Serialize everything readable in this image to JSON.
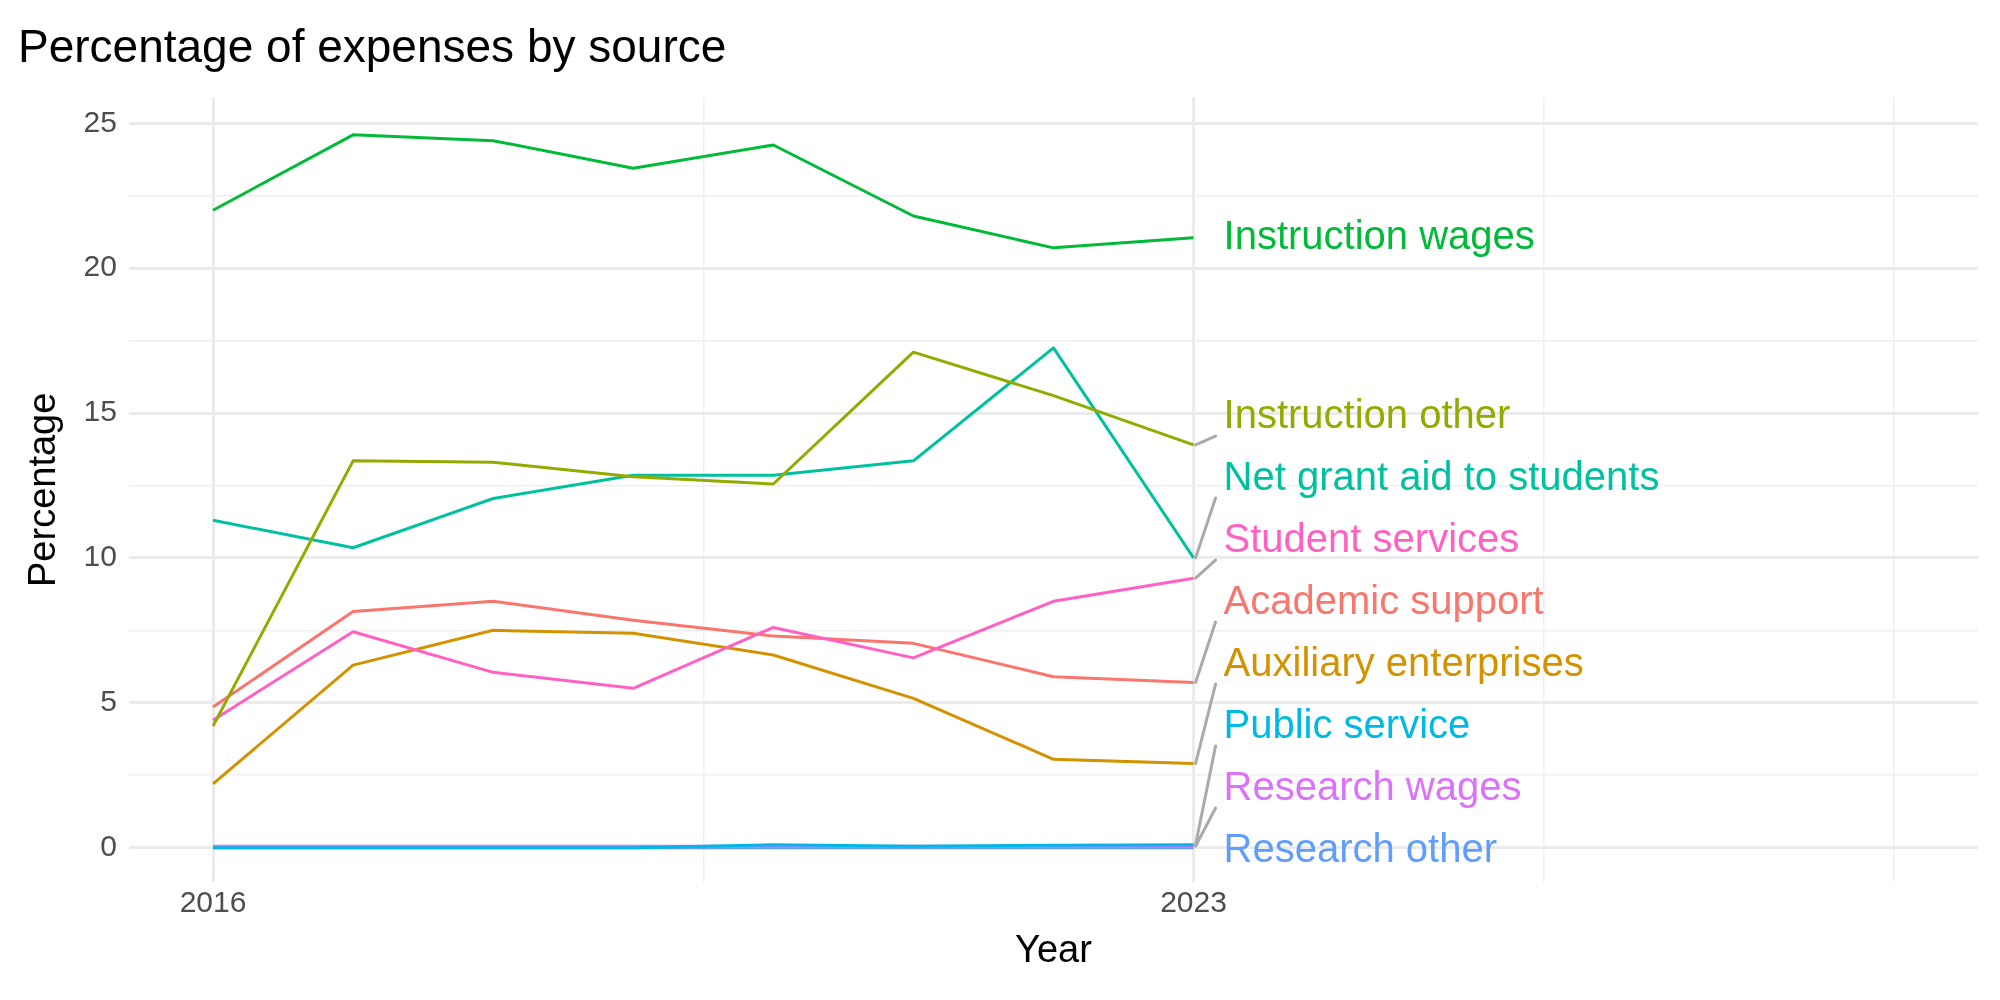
{
  "chart_data": {
    "type": "line",
    "title": "Percentage of expenses by source",
    "xlabel": "Year",
    "ylabel": "Percentage",
    "x": [
      2016,
      2017,
      2018,
      2019,
      2020,
      2021,
      2022,
      2023
    ],
    "xlim": [
      2015.4,
      2028.6
    ],
    "xticks": [
      2016,
      {
        "value": 2019.5,
        "label": null
      },
      2023,
      {
        "value": 2025.5,
        "label": null
      },
      {
        "value": 2028,
        "label": null
      }
    ],
    "ylim": [
      -1.2,
      25.9
    ],
    "yticks": [
      0,
      {
        "value": 2.5,
        "label": null
      },
      5,
      {
        "value": 7.5,
        "label": null
      },
      10,
      {
        "value": 12.5,
        "label": null
      },
      15,
      {
        "value": 17.5,
        "label": null
      },
      20,
      {
        "value": 22.5,
        "label": null
      },
      25
    ],
    "grid": true,
    "legend": false,
    "marker": "none",
    "line_style": "solid",
    "series": [
      {
        "name": "Instruction wages",
        "color": "#00ba38",
        "values": [
          22.0,
          24.6,
          24.4,
          23.45,
          24.25,
          21.8,
          20.7,
          21.05
        ]
      },
      {
        "name": "Instruction other",
        "color": "#93aa00",
        "values": [
          4.2,
          13.35,
          13.3,
          12.8,
          12.55,
          17.1,
          15.6,
          13.9
        ]
      },
      {
        "name": "Net grant aid to students",
        "color": "#00c19f",
        "values": [
          11.3,
          10.35,
          12.05,
          12.85,
          12.85,
          13.35,
          17.25,
          10.0
        ]
      },
      {
        "name": "Student services",
        "color": "#ff61c3",
        "values": [
          4.4,
          7.45,
          6.05,
          5.5,
          7.6,
          6.55,
          8.5,
          9.3
        ]
      },
      {
        "name": "Academic support",
        "color": "#f8766d",
        "values": [
          4.85,
          8.15,
          8.5,
          7.85,
          7.3,
          7.05,
          5.9,
          5.7
        ]
      },
      {
        "name": "Auxiliary enterprises",
        "color": "#d39200",
        "values": [
          2.2,
          6.3,
          7.5,
          7.4,
          6.65,
          5.15,
          3.05,
          2.9
        ]
      },
      {
        "name": "Public service",
        "color": "#00b9e3",
        "values": [
          0.0,
          0.0,
          0.0,
          0.0,
          0.1,
          0.05,
          0.08,
          0.1
        ]
      },
      {
        "name": "Research wages",
        "color": "#db72fb",
        "values": [
          0.05,
          0.05,
          0.05,
          0.05,
          0.05,
          0.05,
          0.05,
          0.05
        ]
      },
      {
        "name": "Research other",
        "color": "#619cff",
        "values": [
          0.0,
          0.0,
          0.0,
          0.0,
          0.0,
          0.0,
          0.0,
          0.0
        ]
      }
    ]
  }
}
